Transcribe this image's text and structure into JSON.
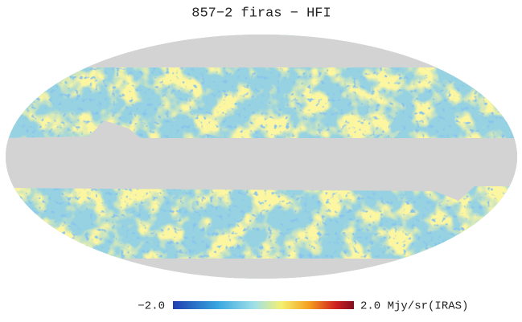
{
  "title": "857−2 firas − HFI",
  "colorbar": {
    "min": {
      "value": -2,
      "label": "−2.0"
    },
    "max": {
      "value": 2,
      "label": "2.0 Mjy/sr(IRAS)"
    }
  }
}
